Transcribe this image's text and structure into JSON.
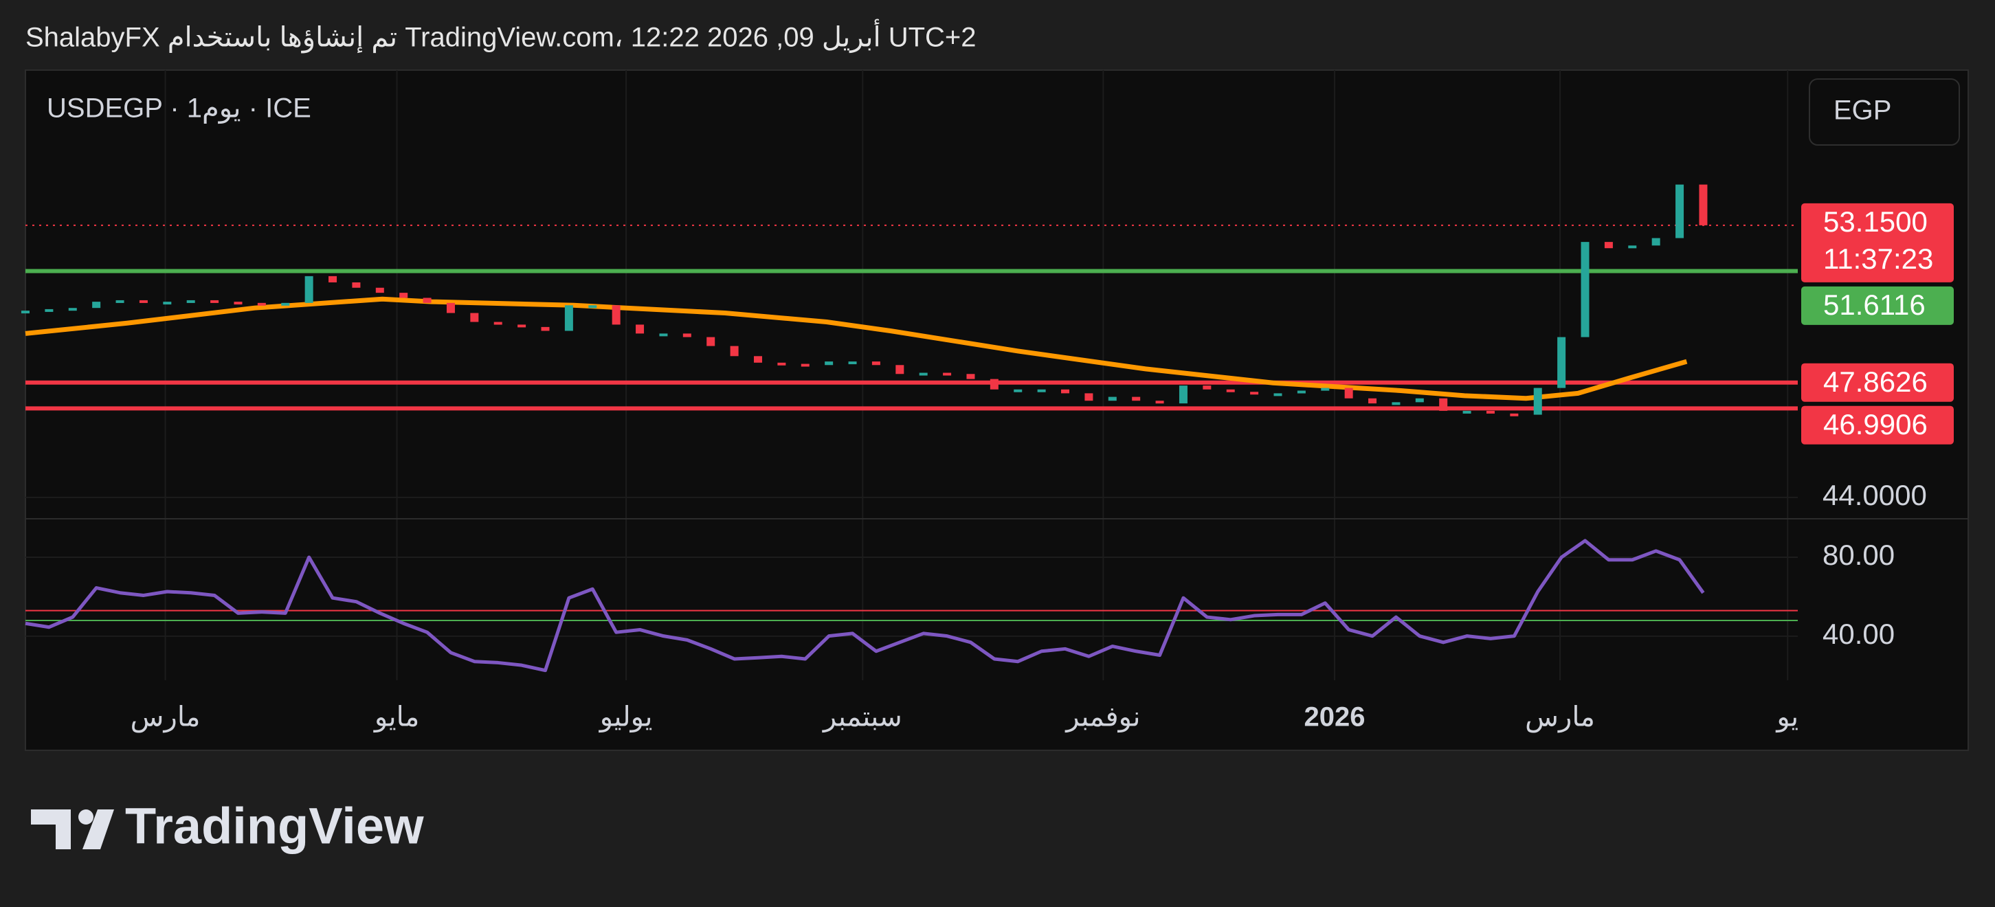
{
  "header": {
    "text": "ShalabyFX تم إنشاؤها باستخدام TradingView.com، 12:22 2026 ,09 أبريل UTC+2"
  },
  "chart_data": {
    "type": "candlestick",
    "legend": "USDEGP · 1يوم · ICE",
    "currency": "EGP",
    "xlim": [
      0,
      75
    ],
    "xticks": [
      {
        "value": 5.92,
        "label": "مارس"
      },
      {
        "value": 15.72,
        "label": "مايو"
      },
      {
        "value": 25.42,
        "label": "يوليو"
      },
      {
        "value": 35.43,
        "label": "سبتمبر"
      },
      {
        "value": 45.61,
        "label": "نوفمبر"
      },
      {
        "value": 55.4,
        "label": "2026"
      },
      {
        "value": 64.94,
        "label": "مارس"
      },
      {
        "value": 74.57,
        "label": "يو"
      }
    ],
    "ylim": [
      43.28,
      58.37
    ],
    "yticks": [
      {
        "value": 44,
        "label": "44.0000"
      }
    ],
    "up_color": "#26a69a",
    "down_color": "#f23645",
    "close": [
      50.28,
      50.33,
      50.37,
      50.58,
      50.63,
      50.58,
      50.58,
      50.63,
      50.58,
      50.54,
      50.5,
      50.54,
      51.44,
      51.23,
      51.05,
      50.88,
      50.71,
      50.54,
      50.2,
      49.9,
      49.81,
      49.73,
      49.6,
      50.46,
      50.46,
      49.81,
      49.51,
      49.51,
      49.39,
      49.09,
      48.75,
      48.53,
      48.49,
      48.45,
      48.57,
      48.57,
      48.45,
      48.15,
      48.19,
      48.15,
      47.98,
      47.63,
      47.63,
      47.63,
      47.5,
      47.25,
      47.38,
      47.25,
      47.16,
      47.76,
      47.63,
      47.55,
      47.5,
      47.5,
      47.59,
      47.68,
      47.33,
      47.16,
      47.2,
      47.33,
      46.91,
      46.91,
      46.82,
      46.78,
      47.68,
      49.39,
      52.59,
      52.38,
      52.47,
      52.72,
      54.52,
      53.15
    ],
    "moving_average": {
      "color": "#ff9800",
      "x": [
        0,
        4.3,
        9.7,
        15.1,
        17.2,
        23.2,
        29.6,
        33.9,
        36.6,
        42.0,
        47.4,
        52.8,
        55.5,
        58.2,
        60.9,
        63.5,
        65.7,
        67.9,
        70.3
      ],
      "values": [
        49.51,
        49.86,
        50.37,
        50.67,
        50.58,
        50.46,
        50.2,
        49.9,
        49.6,
        48.92,
        48.32,
        47.85,
        47.72,
        47.59,
        47.42,
        47.33,
        47.5,
        48.02,
        48.57
      ]
    },
    "levels": [
      {
        "value": 53.15,
        "label": "53.1500",
        "countdown": "11:37:23",
        "color": "#f23645",
        "style": "dotted"
      },
      {
        "value": 51.6116,
        "color": "#4caf50",
        "style": "solid"
      },
      {
        "value": 47.8626,
        "color": "#f23645",
        "style": "solid"
      },
      {
        "value": 46.9906,
        "color": "#f23645",
        "style": "solid"
      }
    ],
    "rsi": {
      "color": "#7e57c2",
      "ylim": [
        17.7,
        99.5
      ],
      "yticks": [
        {
          "value": 80,
          "label": "80.00"
        },
        {
          "value": 40,
          "label": "40.00"
        }
      ],
      "levels": [
        {
          "value": 53,
          "color": "#f23645"
        },
        {
          "value": 48,
          "color": "#4caf50"
        }
      ],
      "values": [
        46.5,
        44.6,
        49.7,
        64.5,
        62.0,
        60.7,
        62.6,
        62.0,
        60.7,
        51.7,
        52.3,
        51.7,
        80.0,
        59.4,
        57.5,
        51.7,
        46.5,
        42.0,
        31.7,
        27.2,
        26.6,
        25.3,
        22.7,
        59.4,
        63.9,
        42.0,
        43.3,
        40.1,
        38.1,
        33.6,
        28.5,
        29.1,
        29.8,
        28.5,
        40.1,
        41.4,
        32.4,
        36.9,
        41.4,
        40.1,
        36.9,
        28.5,
        27.2,
        32.4,
        33.6,
        29.8,
        34.9,
        32.4,
        30.4,
        59.4,
        49.7,
        48.4,
        50.4,
        51.0,
        51.0,
        56.8,
        43.3,
        40.1,
        49.7,
        40.1,
        36.9,
        40.1,
        38.8,
        40.1,
        62.6,
        80.0,
        88.4,
        78.7,
        78.7,
        83.2,
        78.7,
        62.0
      ]
    }
  },
  "footer": {
    "logo": "TradingView"
  }
}
